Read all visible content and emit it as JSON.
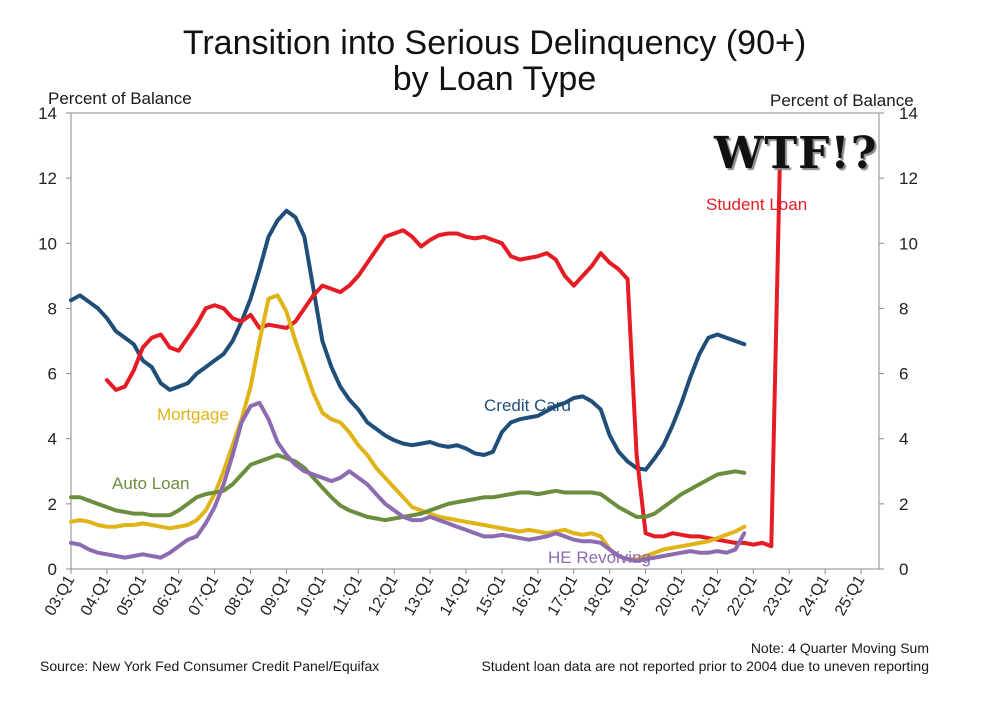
{
  "title_line1": "Transition into Serious Delinquency (90+)",
  "title_line2": "by Loan Type",
  "unit_left": "Percent of Balance",
  "unit_right": "Percent of Balance",
  "annotation_wtf": "WTF!?",
  "note1": "Note: 4 Quarter Moving Sum",
  "note2": "Student loan data are not reported prior to 2004 due to uneven reporting",
  "source": "Source: New York Fed Consumer Credit Panel/Equifax",
  "chart_data": {
    "type": "line",
    "title": "Transition into Serious Delinquency (90+) by Loan Type",
    "ylabel": "Percent of Balance",
    "ylim": [
      0,
      14
    ],
    "yticks": [
      0,
      2,
      4,
      6,
      8,
      10,
      12,
      14
    ],
    "x_start": 2003.0,
    "x_end": 2025.5,
    "quarters_per_year": 4,
    "xticks": [
      "03:Q1",
      "04:Q1",
      "05:Q1",
      "06:Q1",
      "07:Q1",
      "08:Q1",
      "09:Q1",
      "10:Q1",
      "11:Q1",
      "12:Q1",
      "13:Q1",
      "14:Q1",
      "15:Q1",
      "16:Q1",
      "17:Q1",
      "18:Q1",
      "19:Q1",
      "20:Q1",
      "21:Q1",
      "22:Q1",
      "23:Q1",
      "24:Q1",
      "25:Q1"
    ],
    "series": [
      {
        "name": "Credit Card",
        "color": "#1f4e79",
        "label": "Credit Card",
        "start_index": 0,
        "values": [
          8.25,
          8.4,
          8.2,
          8.0,
          7.7,
          7.3,
          7.1,
          6.9,
          6.4,
          6.2,
          5.7,
          5.5,
          5.6,
          5.7,
          6.0,
          6.2,
          6.4,
          6.6,
          7.0,
          7.6,
          8.3,
          9.2,
          10.2,
          10.7,
          11.0,
          10.8,
          10.2,
          8.6,
          7.0,
          6.2,
          5.6,
          5.2,
          4.9,
          4.5,
          4.3,
          4.1,
          3.95,
          3.85,
          3.8,
          3.85,
          3.9,
          3.8,
          3.75,
          3.8,
          3.7,
          3.55,
          3.5,
          3.6,
          4.2,
          4.5,
          4.6,
          4.65,
          4.7,
          4.85,
          5.0,
          5.1,
          5.25,
          5.3,
          5.15,
          4.9,
          4.1,
          3.6,
          3.3,
          3.1,
          3.05,
          3.4,
          3.8,
          4.4,
          5.1,
          5.9,
          6.6,
          7.1,
          7.2,
          7.1,
          7.0,
          6.9
        ]
      },
      {
        "name": "Student Loan",
        "color": "#e51c23",
        "label": "Student Loan",
        "start_index": 4,
        "values": [
          5.8,
          5.5,
          5.6,
          6.1,
          6.8,
          7.1,
          7.2,
          6.8,
          6.7,
          7.1,
          7.5,
          8.0,
          8.1,
          8.0,
          7.7,
          7.6,
          7.8,
          7.4,
          7.5,
          7.45,
          7.4,
          7.6,
          8.0,
          8.4,
          8.7,
          8.6,
          8.5,
          8.7,
          9.0,
          9.4,
          9.8,
          10.2,
          10.3,
          10.4,
          10.2,
          9.9,
          10.1,
          10.25,
          10.3,
          10.3,
          10.2,
          10.15,
          10.2,
          10.1,
          10.0,
          9.6,
          9.5,
          9.55,
          9.6,
          9.7,
          9.5,
          9.0,
          8.7,
          9.0,
          9.3,
          9.7,
          9.4,
          9.2,
          8.9,
          3.5,
          1.1,
          1.0,
          1.0,
          1.1,
          1.05,
          1.0,
          1.0,
          0.95,
          0.9,
          0.85,
          0.8,
          0.8,
          0.75,
          0.8,
          0.7,
          12.9
        ]
      },
      {
        "name": "Mortgage",
        "color": "#e0b416",
        "label": "Mortgage",
        "start_index": 0,
        "values": [
          1.45,
          1.5,
          1.45,
          1.35,
          1.3,
          1.3,
          1.35,
          1.35,
          1.4,
          1.35,
          1.3,
          1.25,
          1.3,
          1.35,
          1.5,
          1.8,
          2.3,
          3.0,
          3.8,
          4.6,
          5.6,
          7.0,
          8.3,
          8.4,
          7.9,
          7.0,
          6.2,
          5.4,
          4.8,
          4.6,
          4.5,
          4.2,
          3.8,
          3.5,
          3.1,
          2.8,
          2.5,
          2.2,
          1.9,
          1.8,
          1.7,
          1.6,
          1.55,
          1.5,
          1.45,
          1.4,
          1.35,
          1.3,
          1.25,
          1.2,
          1.15,
          1.2,
          1.15,
          1.1,
          1.15,
          1.2,
          1.1,
          1.05,
          1.1,
          1.0,
          0.6,
          0.4,
          0.3,
          0.3,
          0.4,
          0.5,
          0.6,
          0.65,
          0.7,
          0.75,
          0.8,
          0.85,
          0.95,
          1.05,
          1.15,
          1.3
        ]
      },
      {
        "name": "Auto Loan",
        "color": "#6a8e3d",
        "label": "Auto Loan",
        "start_index": 0,
        "values": [
          2.2,
          2.2,
          2.1,
          2.0,
          1.9,
          1.8,
          1.75,
          1.7,
          1.7,
          1.65,
          1.65,
          1.65,
          1.8,
          2.0,
          2.2,
          2.3,
          2.35,
          2.4,
          2.6,
          2.9,
          3.2,
          3.3,
          3.4,
          3.5,
          3.4,
          3.3,
          3.1,
          2.8,
          2.5,
          2.2,
          1.95,
          1.8,
          1.7,
          1.6,
          1.55,
          1.5,
          1.55,
          1.6,
          1.65,
          1.7,
          1.8,
          1.9,
          2.0,
          2.05,
          2.1,
          2.15,
          2.2,
          2.2,
          2.25,
          2.3,
          2.35,
          2.35,
          2.3,
          2.35,
          2.4,
          2.35,
          2.35,
          2.35,
          2.35,
          2.3,
          2.1,
          1.9,
          1.75,
          1.6,
          1.6,
          1.7,
          1.9,
          2.1,
          2.3,
          2.45,
          2.6,
          2.75,
          2.9,
          2.95,
          3.0,
          2.95
        ]
      },
      {
        "name": "HE Revolving",
        "color": "#8c6bb1",
        "label": "HE Revolving",
        "start_index": 0,
        "values": [
          0.8,
          0.75,
          0.6,
          0.5,
          0.45,
          0.4,
          0.35,
          0.4,
          0.45,
          0.4,
          0.35,
          0.5,
          0.7,
          0.9,
          1.0,
          1.4,
          1.9,
          2.6,
          3.5,
          4.5,
          5.0,
          5.1,
          4.6,
          3.9,
          3.5,
          3.2,
          3.0,
          2.9,
          2.8,
          2.7,
          2.8,
          3.0,
          2.8,
          2.6,
          2.3,
          2.0,
          1.8,
          1.6,
          1.5,
          1.5,
          1.6,
          1.5,
          1.4,
          1.3,
          1.2,
          1.1,
          1.0,
          1.0,
          1.05,
          1.0,
          0.95,
          0.9,
          0.95,
          1.0,
          1.1,
          1.0,
          0.9,
          0.85,
          0.85,
          0.8,
          0.6,
          0.4,
          0.3,
          0.25,
          0.3,
          0.35,
          0.4,
          0.45,
          0.5,
          0.55,
          0.5,
          0.5,
          0.55,
          0.5,
          0.6,
          1.1
        ]
      }
    ],
    "series_labels": {
      "Mortgage": "Mortgage",
      "Credit Card": "Credit Card",
      "Auto Loan": "Auto Loan",
      "Student Loan": "Student Loan",
      "HE Revolving": "HE Revolving"
    }
  }
}
